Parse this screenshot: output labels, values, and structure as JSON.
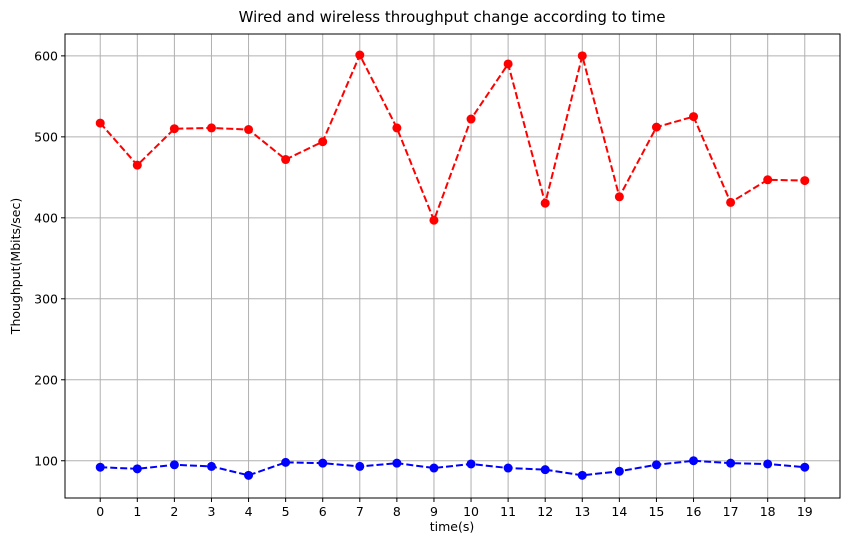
{
  "chart_data": {
    "type": "line",
    "title": "Wired and wireless throughput change according to time",
    "xlabel": "time(s)",
    "ylabel": "Thoughput(Mbits/sec)",
    "x": [
      0,
      1,
      2,
      3,
      4,
      5,
      6,
      7,
      8,
      9,
      10,
      11,
      12,
      13,
      14,
      15,
      16,
      17,
      18,
      19
    ],
    "xticks": [
      0,
      1,
      2,
      3,
      4,
      5,
      6,
      7,
      8,
      9,
      10,
      11,
      12,
      13,
      14,
      15,
      16,
      17,
      18,
      19
    ],
    "yticks": [
      100,
      200,
      300,
      400,
      500,
      600
    ],
    "xlim": [
      -0.95,
      19.95
    ],
    "ylim": [
      54,
      627
    ],
    "grid": true,
    "series": [
      {
        "color": "#ff0000",
        "line_style": "dashed",
        "marker": "circle",
        "values": [
          517,
          465,
          510,
          511,
          509,
          472,
          494,
          601,
          511,
          397,
          522,
          590,
          418,
          600,
          426,
          512,
          525,
          419,
          447,
          446
        ]
      },
      {
        "color": "#0000ff",
        "line_style": "dashed",
        "marker": "circle",
        "values": [
          92,
          90,
          95,
          93,
          82,
          98,
          97,
          93,
          97,
          91,
          96,
          91,
          89,
          82,
          87,
          95,
          100,
          97,
          96,
          92
        ]
      }
    ]
  }
}
